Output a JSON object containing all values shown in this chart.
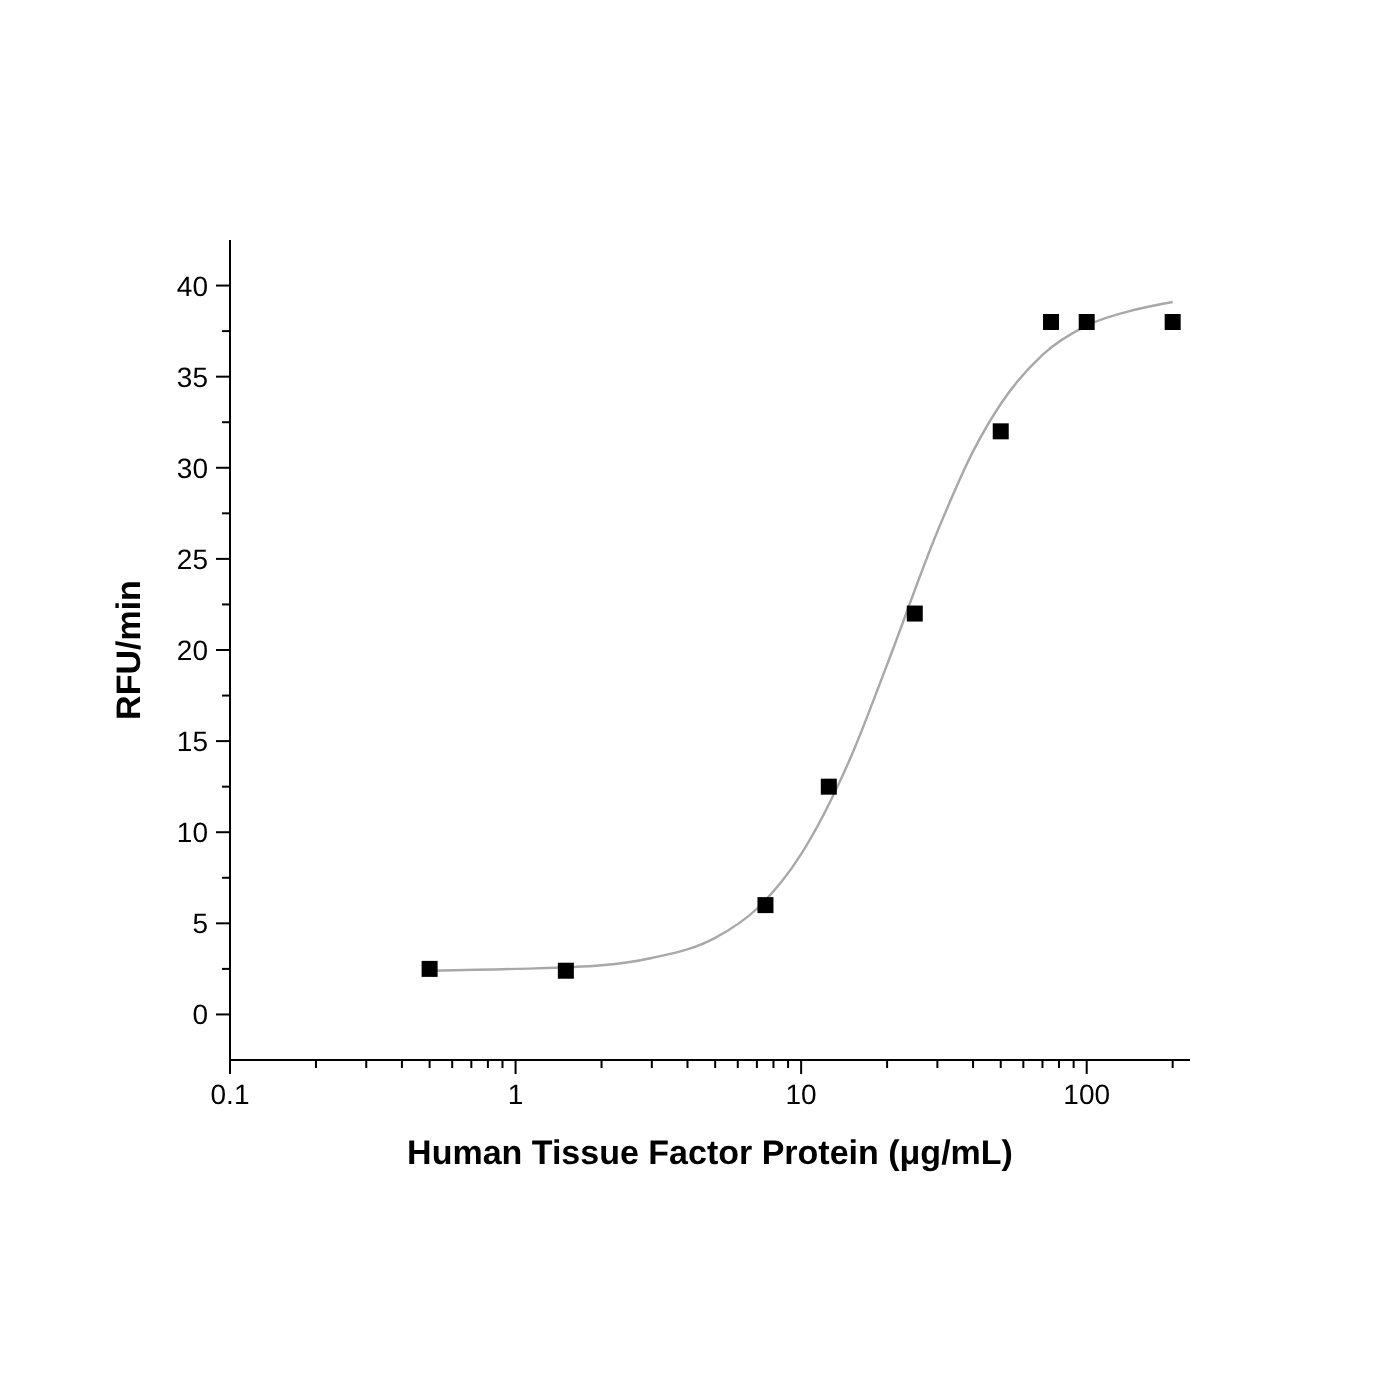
{
  "chart_data": {
    "type": "scatter",
    "xlabel": "Human Tissue Factor Protein (μg/mL)",
    "ylabel": "RFU/min",
    "log": "x",
    "marker": "square",
    "grid": false,
    "xlim": [
      0.1,
      230
    ],
    "ylim": [
      -2.5,
      42.5
    ],
    "xticks": [
      0.1,
      {
        "value": 0.2,
        "label": null
      },
      {
        "value": 0.3,
        "label": null
      },
      {
        "value": 0.4,
        "label": null
      },
      {
        "value": 0.5,
        "label": null
      },
      {
        "value": 0.6,
        "label": null
      },
      {
        "value": 0.7,
        "label": null
      },
      {
        "value": 0.8,
        "label": null
      },
      {
        "value": 0.9,
        "label": null
      },
      1,
      {
        "value": 2,
        "label": null
      },
      {
        "value": 3,
        "label": null
      },
      {
        "value": 4,
        "label": null
      },
      {
        "value": 5,
        "label": null
      },
      {
        "value": 6,
        "label": null
      },
      {
        "value": 7,
        "label": null
      },
      {
        "value": 8,
        "label": null
      },
      {
        "value": 9,
        "label": null
      },
      10,
      {
        "value": 20,
        "label": null
      },
      {
        "value": 30,
        "label": null
      },
      {
        "value": 40,
        "label": null
      },
      {
        "value": 50,
        "label": null
      },
      {
        "value": 60,
        "label": null
      },
      {
        "value": 70,
        "label": null
      },
      {
        "value": 80,
        "label": null
      },
      {
        "value": 90,
        "label": null
      },
      100,
      {
        "value": 200,
        "label": null
      }
    ],
    "yticks": [
      0,
      {
        "value": 2.5,
        "label": null
      },
      5,
      {
        "value": 7.5,
        "label": null
      },
      10,
      {
        "value": 12.5,
        "label": null
      },
      15,
      {
        "value": 17.5,
        "label": null
      },
      20,
      {
        "value": 22.5,
        "label": null
      },
      25,
      {
        "value": 27.5,
        "label": null
      },
      30,
      {
        "value": 32.5,
        "label": null
      },
      35,
      {
        "value": 37.5,
        "label": null
      },
      40
    ],
    "series": [
      {
        "type": "line",
        "color": "#a8a8a8",
        "marker": "none",
        "x": [
          0.5,
          1,
          2,
          3,
          5,
          7,
          10,
          15,
          20,
          30,
          40,
          50,
          70,
          100,
          150,
          200
        ],
        "values": [
          2.4,
          2.5,
          2.7,
          3.1,
          4.2,
          5.8,
          8.8,
          14.2,
          19.2,
          26.5,
          30.9,
          33.5,
          36.2,
          37.8,
          38.7,
          39.1
        ]
      },
      {
        "color": "#000000",
        "x": [
          0.5,
          1.5,
          7.5,
          12.5,
          25,
          50,
          75,
          100,
          200
        ],
        "values": [
          2.5,
          2.4,
          6,
          12.5,
          22,
          32,
          38,
          38,
          38
        ]
      }
    ]
  }
}
